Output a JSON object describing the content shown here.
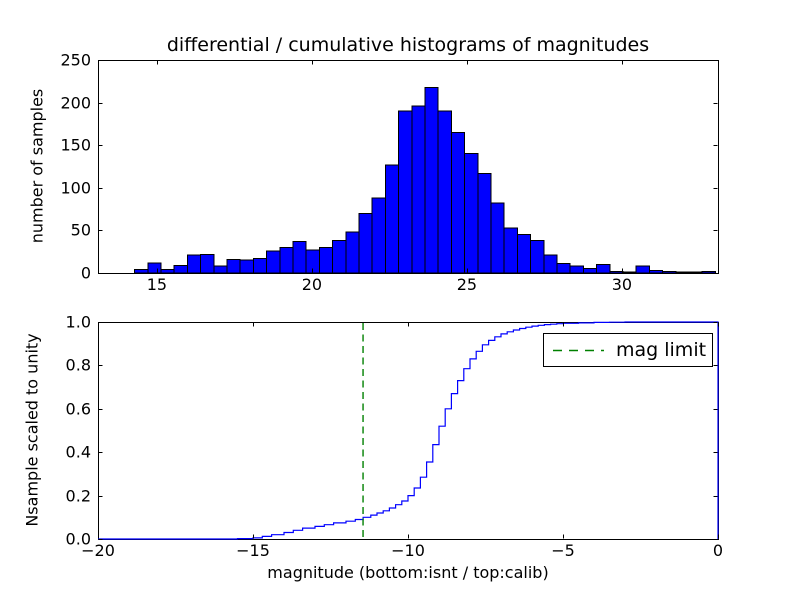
{
  "figure": {
    "background": "#ffffff"
  },
  "colors": {
    "bar_fill": "#0000ff",
    "bar_edge": "#000000",
    "line": "#0000ff",
    "mag_limit": "#008000",
    "axes": "#000000"
  },
  "chart_data": [
    {
      "id": "top-histogram",
      "type": "bar",
      "title": "differential / cumulative histograms of magnitudes",
      "ylabel": "number of samples",
      "xlim": [
        13.1,
        33.1
      ],
      "ylim": [
        0,
        250
      ],
      "xticks": [
        15,
        20,
        25,
        30
      ],
      "xtick_labels": [
        "15",
        "20",
        "25",
        "30"
      ],
      "yticks": [
        0,
        50,
        100,
        150,
        200,
        250
      ],
      "ytick_labels": [
        "0",
        "50",
        "100",
        "150",
        "200",
        "250"
      ],
      "grid": false,
      "bar_color": "#0000ff",
      "bar_edge_color": "#000000",
      "bin_start": 14.28,
      "bin_width": 0.4258,
      "counts": [
        4,
        12,
        4,
        9,
        21,
        22,
        8,
        16,
        15,
        17,
        26,
        30,
        37,
        27,
        30,
        38,
        48,
        70,
        88,
        127,
        190,
        196,
        218,
        190,
        165,
        140,
        117,
        82,
        53,
        45,
        38,
        21,
        11,
        8,
        5,
        10,
        2,
        1,
        8,
        3,
        2,
        1,
        1,
        2
      ]
    },
    {
      "id": "bottom-cumulative",
      "type": "line",
      "style": "step",
      "ylabel": "Nsample scaled to unity",
      "xlabel": "magnitude (bottom:isnt / top:calib)",
      "xlim": [
        -20,
        0
      ],
      "ylim": [
        0,
        1.0
      ],
      "xticks": [
        -20,
        -15,
        -10,
        -5,
        0
      ],
      "xtick_labels": [
        "−20",
        "−15",
        "−10",
        "−5",
        "0"
      ],
      "yticks": [
        0,
        0.2,
        0.4,
        0.6,
        0.8,
        1.0
      ],
      "ytick_labels": [
        "0.0",
        "0.2",
        "0.4",
        "0.6",
        "0.8",
        "1.0"
      ],
      "grid": false,
      "line_color": "#0000ff",
      "points": [
        [
          -20,
          0
        ],
        [
          -16,
          0
        ],
        [
          -15.5,
          0.002
        ],
        [
          -15,
          0.005
        ],
        [
          -14.7,
          0.012
        ],
        [
          -14.4,
          0.02
        ],
        [
          -14,
          0.03
        ],
        [
          -13.7,
          0.04
        ],
        [
          -13.4,
          0.05
        ],
        [
          -13,
          0.058
        ],
        [
          -12.7,
          0.066
        ],
        [
          -12.4,
          0.074
        ],
        [
          -12,
          0.082
        ],
        [
          -11.7,
          0.09
        ],
        [
          -11.45,
          0.1
        ],
        [
          -11.2,
          0.11
        ],
        [
          -11,
          0.12
        ],
        [
          -10.8,
          0.13
        ],
        [
          -10.6,
          0.143
        ],
        [
          -10.4,
          0.158
        ],
        [
          -10.2,
          0.175
        ],
        [
          -10,
          0.2
        ],
        [
          -9.8,
          0.235
        ],
        [
          -9.6,
          0.285
        ],
        [
          -9.4,
          0.355
        ],
        [
          -9.2,
          0.435
        ],
        [
          -9,
          0.52
        ],
        [
          -8.8,
          0.6
        ],
        [
          -8.6,
          0.67
        ],
        [
          -8.4,
          0.73
        ],
        [
          -8.2,
          0.785
        ],
        [
          -8,
          0.83
        ],
        [
          -7.8,
          0.865
        ],
        [
          -7.6,
          0.895
        ],
        [
          -7.4,
          0.915
        ],
        [
          -7.2,
          0.932
        ],
        [
          -7,
          0.945
        ],
        [
          -6.8,
          0.955
        ],
        [
          -6.6,
          0.963
        ],
        [
          -6.4,
          0.97
        ],
        [
          -6.2,
          0.976
        ],
        [
          -6,
          0.981
        ],
        [
          -5.8,
          0.985
        ],
        [
          -5.6,
          0.988
        ],
        [
          -5.4,
          0.99
        ],
        [
          -5.2,
          0.992
        ],
        [
          -5,
          0.994
        ],
        [
          -4.5,
          0.996
        ],
        [
          -4,
          0.998
        ],
        [
          -3.5,
          0.999
        ],
        [
          -3,
          1.0
        ],
        [
          0,
          1.0
        ],
        [
          0,
          0
        ]
      ],
      "mag_limit": {
        "x": -11.45,
        "color": "#008000",
        "dash": "7,4.5",
        "label": "mag limit"
      },
      "legend": {
        "label": "mag limit",
        "position": "upper-right"
      }
    }
  ]
}
